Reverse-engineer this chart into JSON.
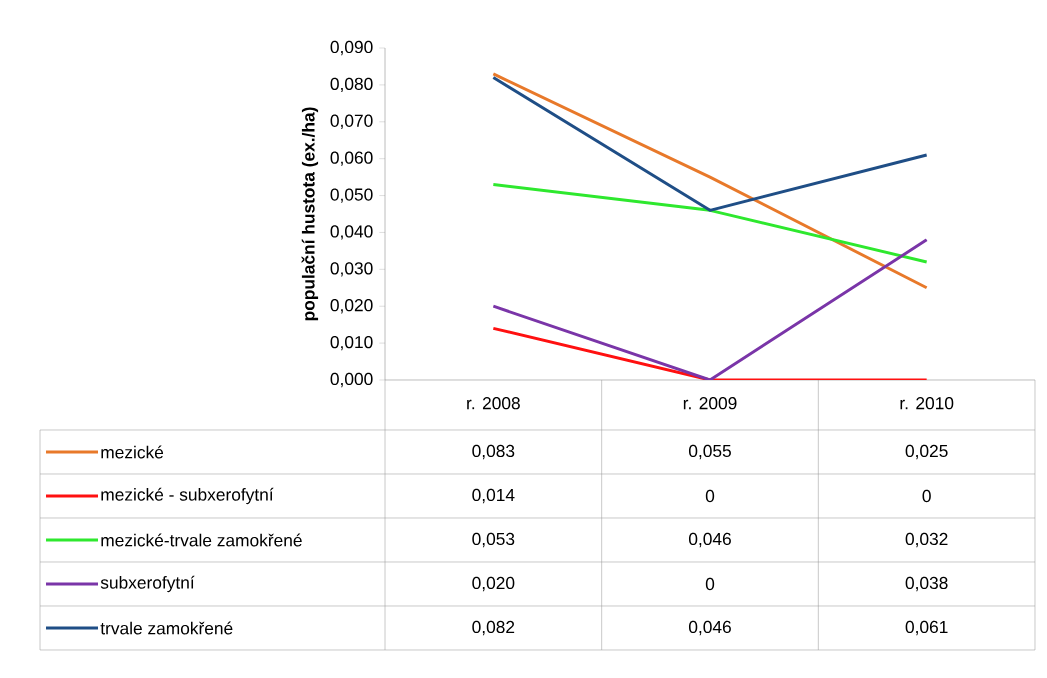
{
  "chart_data": {
    "type": "line",
    "ylabel": "populační hustota (ex./ha)",
    "categories": [
      "r. 2008",
      "r. 2009",
      "r. 2010"
    ],
    "ylim": [
      0,
      0.09
    ],
    "yticks": [
      {
        "value": 0,
        "label": "0,000"
      },
      {
        "value": 0.01,
        "label": "0,010"
      },
      {
        "value": 0.02,
        "label": "0,020"
      },
      {
        "value": 0.03,
        "label": "0,030"
      },
      {
        "value": 0.04,
        "label": "0,040"
      },
      {
        "value": 0.05,
        "label": "0,050"
      },
      {
        "value": 0.06,
        "label": "0,060"
      },
      {
        "value": 0.07,
        "label": "0,070"
      },
      {
        "value": 0.08,
        "label": "0,080"
      },
      {
        "value": 0.09,
        "label": "0,090"
      }
    ],
    "series": [
      {
        "name": "mezické",
        "color": "#e8792a",
        "values": [
          0.083,
          0.055,
          0.025
        ],
        "value_labels": [
          "0,083",
          "0,055",
          "0,025"
        ]
      },
      {
        "name": "mezické - subxerofytní",
        "color": "#ff1010",
        "values": [
          0.014,
          0,
          0
        ],
        "value_labels": [
          "0,014",
          "0",
          "0"
        ]
      },
      {
        "name": "mezické-trvale zamokřené",
        "color": "#2ee82e",
        "values": [
          0.053,
          0.046,
          0.032
        ],
        "value_labels": [
          "0,053",
          "0,046",
          "0,032"
        ]
      },
      {
        "name": "subxerofytní",
        "color": "#7a35a8",
        "values": [
          0.02,
          0,
          0.038
        ],
        "value_labels": [
          "0,020",
          "0",
          "0,038"
        ]
      },
      {
        "name": "trvale zamokřené",
        "color": "#1f4e86",
        "values": [
          0.082,
          0.046,
          0.061
        ],
        "value_labels": [
          "0,082",
          "0,046",
          "0,061"
        ]
      }
    ],
    "marker": "none",
    "line_style": "solid",
    "legend": "bottom"
  }
}
